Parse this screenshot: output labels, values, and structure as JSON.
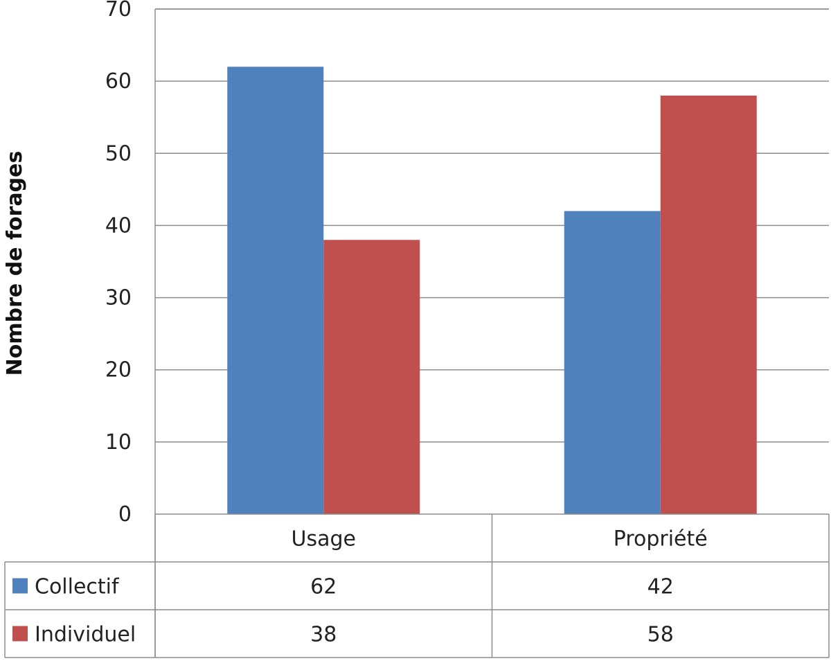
{
  "chart_data": {
    "type": "bar",
    "categories": [
      "Usage",
      "Propriété"
    ],
    "series": [
      {
        "name": "Collectif",
        "values": [
          62,
          42
        ],
        "color": "#4F81BD"
      },
      {
        "name": "Individuel",
        "values": [
          38,
          58
        ],
        "color": "#C0504D"
      }
    ],
    "title": "",
    "xlabel": "",
    "ylabel": "Nombre de forages",
    "ylim": [
      0,
      70
    ],
    "yticks": [
      0,
      10,
      20,
      30,
      40,
      50,
      60,
      70
    ],
    "grid": true,
    "legend": "data-table",
    "data_table": true
  }
}
